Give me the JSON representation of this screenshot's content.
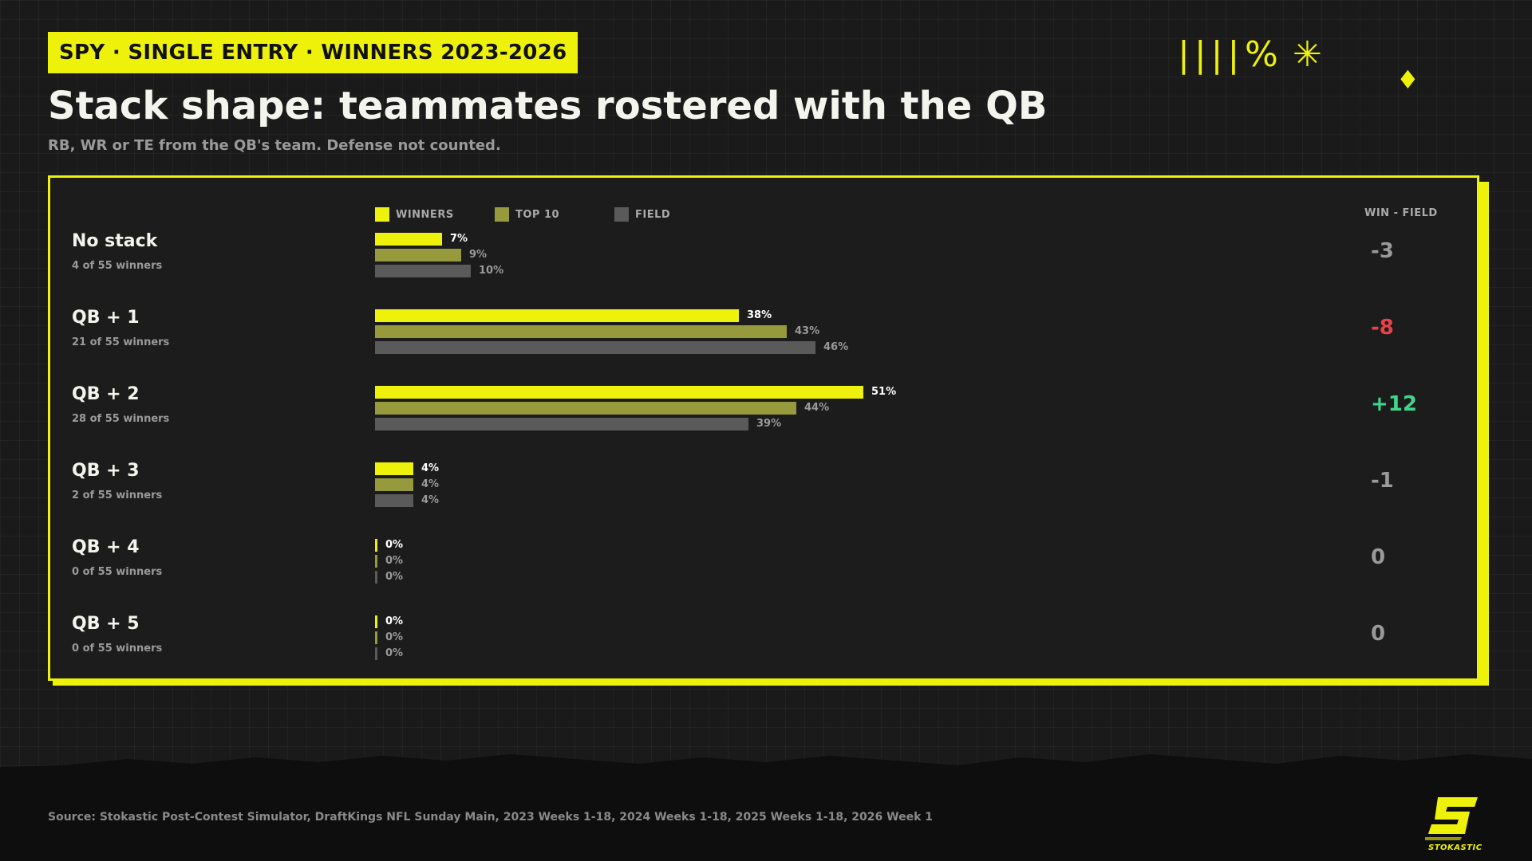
{
  "header": {
    "badge": "SPY · SINGLE ENTRY · WINNERS 2023-2026",
    "title": "Stack shape: teammates rostered with the QB",
    "subtitle": "RB, WR or TE from the QB's team. Defense not counted."
  },
  "decorations": {
    "bars": "||||",
    "percent": "%",
    "star": "✳",
    "diamond": "♦"
  },
  "colors": {
    "accent": "#eef20a",
    "winners": "#eef20a",
    "top10": "#979a3c",
    "field": "#5a5a5a",
    "positive": "#3fd68a",
    "negative": "#e8434b",
    "neutral": "#9a9a9a"
  },
  "legend": {
    "winners": "WINNERS",
    "top10": "TOP 10",
    "field": "FIELD"
  },
  "diff_header": "WIN - FIELD",
  "chart_data": {
    "type": "bar",
    "orientation": "horizontal",
    "categories": [
      "No stack",
      "QB + 1",
      "QB + 2",
      "QB + 3",
      "QB + 4",
      "QB + 5"
    ],
    "subtitles": [
      "4 of 55 winners",
      "21 of 55 winners",
      "28 of 55 winners",
      "2 of 55 winners",
      "0 of 55 winners",
      "0 of 55 winners"
    ],
    "series": [
      {
        "name": "WINNERS",
        "values": [
          7,
          38,
          51,
          4,
          0,
          0
        ],
        "labels": [
          "7%",
          "38%",
          "51%",
          "4%",
          "0%",
          "0%"
        ]
      },
      {
        "name": "TOP 10",
        "values": [
          9,
          43,
          44,
          4,
          0,
          0
        ],
        "labels": [
          "9%",
          "43%",
          "44%",
          "4%",
          "0%",
          "0%"
        ]
      },
      {
        "name": "FIELD",
        "values": [
          10,
          46,
          39,
          4,
          0,
          0
        ],
        "labels": [
          "10%",
          "46%",
          "39%",
          "4%",
          "0%",
          "0%"
        ]
      }
    ],
    "diff": [
      "-3",
      "-8",
      "+12",
      "-1",
      "0",
      "0"
    ],
    "diff_tone": [
      "neutral",
      "negative",
      "positive",
      "neutral",
      "neutral",
      "neutral"
    ],
    "xlim": [
      0,
      100
    ],
    "legend_position": "top-left"
  },
  "footer": {
    "source": "Source: Stokastic Post-Contest Simulator, DraftKings NFL Sunday Main, 2023 Weeks 1-18, 2024 Weeks 1-18, 2025 Weeks 1-18, 2026 Week 1",
    "logo_text": "STOKASTIC"
  }
}
